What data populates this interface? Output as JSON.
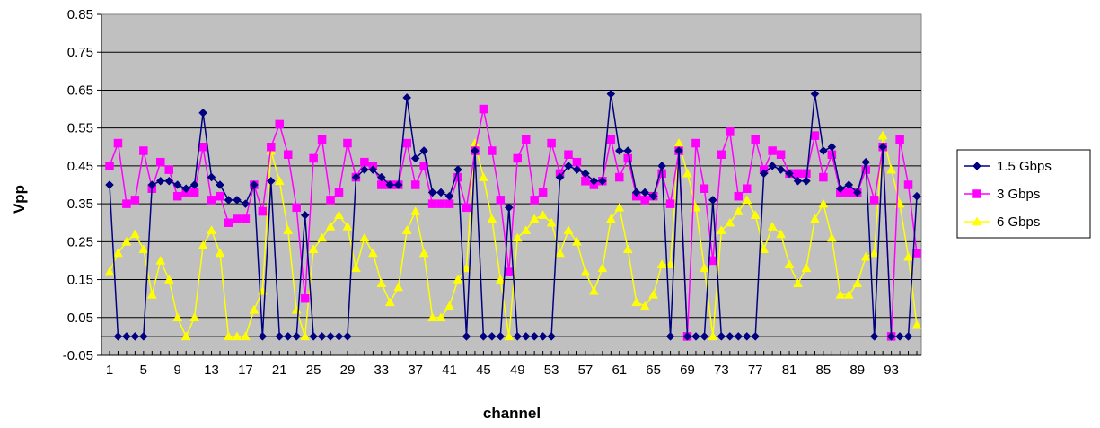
{
  "chart_data": {
    "type": "line",
    "xlabel": "channel",
    "ylabel": "Vpp",
    "ylim": [
      -0.05,
      0.85
    ],
    "yticks": [
      -0.05,
      0.05,
      0.15,
      0.25,
      0.35,
      0.45,
      0.55,
      0.65,
      0.75,
      0.85
    ],
    "ytick_labels": [
      "-0.05",
      "0.05",
      "0.15",
      "0.25",
      "0.35",
      "0.45",
      "0.55",
      "0.65",
      "0.75",
      "0.85"
    ],
    "xlim": [
      1,
      96
    ],
    "xtick_labels": [
      "1",
      "5",
      "9",
      "13",
      "17",
      "21",
      "25",
      "29",
      "33",
      "37",
      "41",
      "45",
      "49",
      "53",
      "57",
      "61",
      "65",
      "69",
      "73",
      "77",
      "81",
      "85",
      "89",
      "93"
    ],
    "plot_background": "#c0c0c0",
    "grid": true,
    "legend_position": "right",
    "series": [
      {
        "name": "1.5 Gbps",
        "color": "#000080",
        "marker": "diamond",
        "values": [
          0.4,
          0,
          0,
          0,
          0,
          0.4,
          0.41,
          0.41,
          0.4,
          0.39,
          0.4,
          0.59,
          0.42,
          0.4,
          0.36,
          0.36,
          0.35,
          0.4,
          0,
          0.41,
          0,
          0,
          0,
          0.32,
          0,
          0,
          0,
          0,
          0,
          0.42,
          0.44,
          0.44,
          0.42,
          0.4,
          0.4,
          0.63,
          0.47,
          0.49,
          0.38,
          0.38,
          0.37,
          0.44,
          0,
          0.49,
          0,
          0,
          0,
          0.34,
          0,
          0,
          0,
          0,
          0,
          0.42,
          0.45,
          0.44,
          0.43,
          0.41,
          0.41,
          0.64,
          0.49,
          0.49,
          0.38,
          0.38,
          0.37,
          0.45,
          0,
          0.49,
          0,
          0,
          0,
          0.36,
          0,
          0,
          0,
          0,
          0,
          0.43,
          0.45,
          0.44,
          0.43,
          0.41,
          0.41,
          0.64,
          0.49,
          0.5,
          0.39,
          0.4,
          0.38,
          0.46,
          0,
          0.5,
          0,
          0,
          0,
          0.37
        ]
      },
      {
        "name": "3 Gbps",
        "color": "#ff00ff",
        "marker": "square",
        "values": [
          0.45,
          0.51,
          0.35,
          0.36,
          0.49,
          0.39,
          0.46,
          0.44,
          0.37,
          0.38,
          0.38,
          0.5,
          0.36,
          0.37,
          0.3,
          0.31,
          0.31,
          0.4,
          0.33,
          0.5,
          0.56,
          0.48,
          0.34,
          0.1,
          0.47,
          0.52,
          0.36,
          0.38,
          0.51,
          0.42,
          0.46,
          0.45,
          0.4,
          0.4,
          0.4,
          0.51,
          0.4,
          0.45,
          0.35,
          0.35,
          0.35,
          0.42,
          0.34,
          0.49,
          0.6,
          0.49,
          0.36,
          0.17,
          0.47,
          0.52,
          0.36,
          0.38,
          0.51,
          0.43,
          0.48,
          0.46,
          0.41,
          0.4,
          0.41,
          0.52,
          0.42,
          0.47,
          0.37,
          0.36,
          0.37,
          0.43,
          0.35,
          0.49,
          0,
          0.51,
          0.39,
          0.2,
          0.48,
          0.54,
          0.37,
          0.39,
          0.52,
          0.44,
          0.49,
          0.48,
          0.43,
          0.43,
          0.43,
          0.53,
          0.42,
          0.48,
          0.38,
          0.38,
          0.38,
          0.44,
          0.36,
          0.5,
          0,
          0.52,
          0.4,
          0.22
        ]
      },
      {
        "name": "6 Gbps",
        "color": "#ffff00",
        "marker": "triangle",
        "values": [
          0.17,
          0.22,
          0.25,
          0.27,
          0.23,
          0.11,
          0.2,
          0.15,
          0.05,
          0,
          0.05,
          0.24,
          0.28,
          0.22,
          0,
          0,
          0,
          0.07,
          0.12,
          0.49,
          0.41,
          0.28,
          0.07,
          0,
          0.23,
          0.26,
          0.29,
          0.32,
          0.29,
          0.18,
          0.26,
          0.22,
          0.14,
          0.09,
          0.13,
          0.28,
          0.33,
          0.22,
          0.05,
          0.05,
          0.08,
          0.15,
          0.18,
          0.51,
          0.42,
          0.31,
          0.15,
          0,
          0.26,
          0.28,
          0.31,
          0.32,
          0.3,
          0.22,
          0.28,
          0.25,
          0.17,
          0.12,
          0.18,
          0.31,
          0.34,
          0.23,
          0.09,
          0.08,
          0.11,
          0.19,
          0.19,
          0.51,
          0.43,
          0.34,
          0.18,
          0,
          0.28,
          0.3,
          0.33,
          0.36,
          0.32,
          0.23,
          0.29,
          0.27,
          0.19,
          0.14,
          0.18,
          0.31,
          0.35,
          0.26,
          0.11,
          0.11,
          0.14,
          0.21,
          0.22,
          0.53,
          0.44,
          0.35,
          0.21,
          0.03
        ]
      }
    ]
  }
}
